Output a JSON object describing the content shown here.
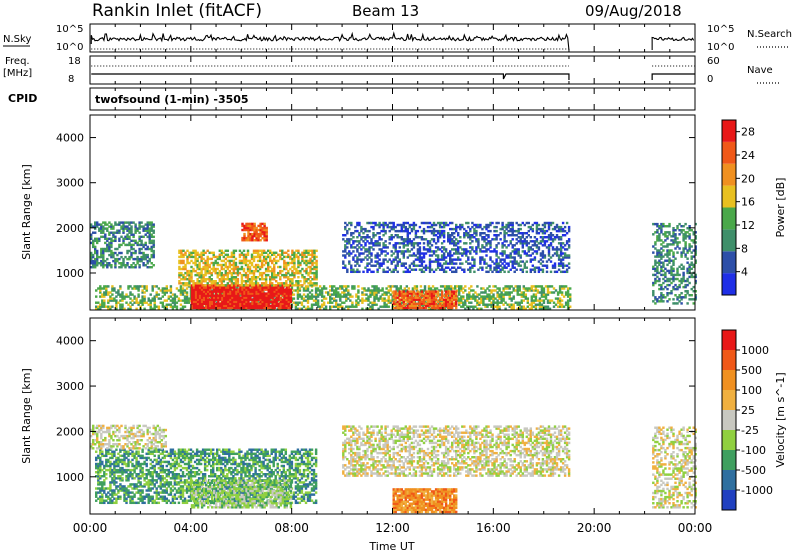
{
  "header": {
    "station": "Rankin Inlet (fitACF)",
    "beam": "Beam 13",
    "date": "09/Aug/2018"
  },
  "meta_panels": {
    "nsky_label": "N.Sky",
    "nsky_ticks": [
      "10^5",
      "10^0"
    ],
    "nsearch_label": "N.Search",
    "nsearch_ticks": [
      "10^5",
      "10^0"
    ],
    "freq_label": "Freq.",
    "freq_unit": "[MHz]",
    "freq_ticks": [
      "18",
      "8"
    ],
    "nave_label": "Nave",
    "nave_ticks": [
      "60",
      "0"
    ],
    "cpid_label": "CPID",
    "cpid_value": "twofsound (1-min) -3505"
  },
  "colors": {
    "power": [
      "#1f2fe6",
      "#2d4fa8",
      "#3f8f6a",
      "#4aa84a",
      "#e8c020",
      "#f09020",
      "#f05818",
      "#e81818"
    ],
    "velocity": [
      "#e81818",
      "#f05818",
      "#f09020",
      "#f0b040",
      "#c8c8c0",
      "#90d040",
      "#3f9f5f",
      "#2f6f9f",
      "#2040c0"
    ]
  },
  "chart_data": [
    {
      "type": "heatmap",
      "panel": "power",
      "ylabel": "Slant Range [km]",
      "yticks": [
        "4000",
        "3000",
        "2000",
        "1000"
      ],
      "ylim": [
        180,
        4500
      ],
      "xlim": [
        0,
        24
      ],
      "colorbar_label": "Power [dB]",
      "colorbar_ticks": [
        "28",
        "24",
        "20",
        "16",
        "12",
        "8",
        "4"
      ],
      "colorbar_range": [
        0,
        30
      ],
      "data_gaps_hours": [
        [
          19.0,
          22.3
        ]
      ],
      "bands": [
        {
          "t0": 0.2,
          "t1": 19.0,
          "r0": 180,
          "r1": 700,
          "dens": 0.55,
          "level": 3
        },
        {
          "t0": 4.0,
          "t1": 8.0,
          "r0": 200,
          "r1": 700,
          "dens": 0.95,
          "level": 7
        },
        {
          "t0": 12.0,
          "t1": 14.5,
          "r0": 200,
          "r1": 600,
          "dens": 0.8,
          "level": 6
        },
        {
          "t0": 3.5,
          "t1": 9.0,
          "r0": 700,
          "r1": 1500,
          "dens": 0.6,
          "level": 4
        },
        {
          "t0": 6.0,
          "t1": 7.0,
          "r0": 1700,
          "r1": 2100,
          "dens": 0.8,
          "level": 6
        },
        {
          "t0": 0.0,
          "t1": 2.5,
          "r0": 1100,
          "r1": 2100,
          "dens": 0.55,
          "level": 2
        },
        {
          "t0": 10.0,
          "t1": 19.0,
          "r0": 1000,
          "r1": 2100,
          "dens": 0.45,
          "level": 1
        },
        {
          "t0": 22.3,
          "t1": 24.0,
          "r0": 300,
          "r1": 2100,
          "dens": 0.45,
          "level": 2
        }
      ]
    },
    {
      "type": "heatmap",
      "panel": "velocity",
      "ylabel": "Slant Range [km]",
      "yticks": [
        "4000",
        "3000",
        "2000",
        "1000"
      ],
      "ylim": [
        180,
        4500
      ],
      "xlim": [
        0,
        24
      ],
      "colorbar_label": "Velocity [m s^-1]",
      "colorbar_ticks": [
        "1000",
        "500",
        "100",
        "25",
        "-25",
        "-100",
        "-500",
        "-1000"
      ],
      "colorbar_range": [
        -1000,
        1000
      ],
      "data_gaps_hours": [
        [
          19.0,
          22.3
        ]
      ],
      "bands": [
        {
          "t0": 0.2,
          "t1": 9.0,
          "r0": 400,
          "r1": 1600,
          "dens": 0.6,
          "level": 6
        },
        {
          "t0": 4.0,
          "t1": 8.0,
          "r0": 300,
          "r1": 900,
          "dens": 0.7,
          "level": 5
        },
        {
          "t0": 12.0,
          "t1": 14.5,
          "r0": 200,
          "r1": 700,
          "dens": 0.9,
          "level": 2
        },
        {
          "t0": 10.0,
          "t1": 19.0,
          "r0": 1000,
          "r1": 2100,
          "dens": 0.55,
          "level": 4
        },
        {
          "t0": 0.0,
          "t1": 3.0,
          "r0": 1600,
          "r1": 2100,
          "dens": 0.5,
          "level": 4
        },
        {
          "t0": 22.3,
          "t1": 24.0,
          "r0": 300,
          "r1": 2100,
          "dens": 0.45,
          "level": 4
        }
      ]
    }
  ],
  "x_axis": {
    "label": "Time UT",
    "ticks": [
      "00:00",
      "04:00",
      "08:00",
      "12:00",
      "16:00",
      "20:00",
      "00:00"
    ]
  }
}
